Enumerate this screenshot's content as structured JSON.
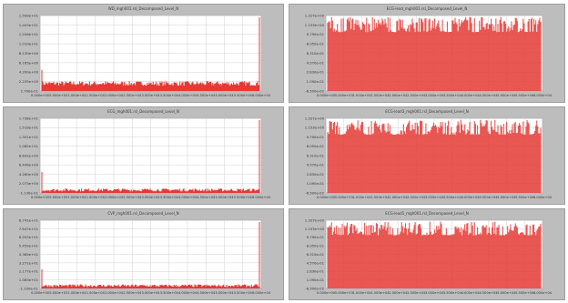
{
  "chart_data": [
    {
      "type": "bar",
      "title": "WD_mgh001.rsl_Decomposed_Level_N",
      "yticks": [
        "1.599e+01",
        "1.403e+01",
        "1.206e+01",
        "1.010e+01",
        "8.130e+00",
        "6.165e+00",
        "4.200e+00",
        "2.235e+00",
        "2.700e-01"
      ],
      "xticks": [
        "0.000e+00",
        "5.000e+03",
        "1.000e+04",
        "1.500e+04",
        "2.000e+04",
        "2.500e+04",
        "3.000e+04",
        "3.500e+04",
        "4.000e+04",
        "4.500e+04",
        "5.000e+04",
        "5.500e+04",
        "6.000e+04"
      ],
      "pattern": "flat",
      "series_color": "#e53935"
    },
    {
      "type": "bar",
      "title": "ECG-lead_mgh001.rsl_Decomposed_Level_N",
      "yticks": [
        "1.327e+00",
        "1.153e+00",
        "9.790e-01",
        "8.050e-01",
        "6.310e-01",
        "4.570e-01",
        "2.830e-01",
        "1.090e-01",
        "-6.500e-02"
      ],
      "xticks": [
        "0.000e+00",
        "5.000e+03",
        "1.000e+04",
        "1.500e+04",
        "2.000e+04",
        "2.500e+04",
        "3.000e+04",
        "3.500e+04",
        "4.000e+04",
        "4.500e+04",
        "5.000e+04",
        "5.500e+04",
        "6.000e+04"
      ],
      "pattern": "dense",
      "series_color": "#e53935"
    },
    {
      "type": "bar",
      "title": "ECG_mgh001.rsl_Decomposed_Level_N",
      "yticks": [
        "1.738e+01",
        "1.519e+01",
        "1.301e+01",
        "1.082e+01",
        "8.632e+00",
        "6.446e+00",
        "4.260e+00",
        "2.073e+00",
        "-1.130e-01"
      ],
      "xticks": [
        "0.000e+00",
        "5.000e+03",
        "1.000e+04",
        "1.500e+04",
        "2.000e+04",
        "2.500e+04",
        "3.000e+04",
        "3.500e+04",
        "4.000e+04",
        "4.500e+04",
        "5.000e+04",
        "5.500e+04",
        "6.000e+04"
      ],
      "pattern": "thin",
      "series_color": "#e53935"
    },
    {
      "type": "bar",
      "title": "ECG-lead3_mgh001.rsl_Decomposed_Level_N",
      "yticks": [
        "1.327e+00",
        "1.153e+00",
        "9.790e-01",
        "8.050e-01",
        "6.310e-01",
        "4.570e-01",
        "2.830e-01",
        "1.090e-01",
        "-6.500e-02"
      ],
      "xticks": [
        "0.000e+00",
        "5.000e+03",
        "1.000e+04",
        "1.500e+04",
        "2.000e+04",
        "2.500e+04",
        "3.000e+04",
        "3.500e+04",
        "4.000e+04",
        "4.500e+04",
        "5.000e+04",
        "5.500e+04",
        "6.000e+04"
      ],
      "pattern": "dense",
      "series_color": "#e53935"
    },
    {
      "type": "bar",
      "title": "CVP_mgh001.rsl_Decomposed_Level_N",
      "yticks": [
        "8.741e+01",
        "7.647e+01",
        "6.553e+01",
        "5.459e+01",
        "4.365e+01",
        "3.271e+01",
        "2.177e+01",
        "1.083e+01",
        "-1.100e-01"
      ],
      "xticks": [
        "0.000e+00",
        "5.000e+03",
        "1.000e+04",
        "1.500e+04",
        "2.000e+04",
        "2.500e+04",
        "3.000e+04",
        "3.500e+04",
        "4.000e+04",
        "4.500e+04",
        "5.000e+04",
        "5.500e+04",
        "6.000e+04"
      ],
      "pattern": "thin",
      "series_color": "#e53935"
    },
    {
      "type": "bar",
      "title": "ECG-lead1_mgh001.rsl_Decomposed_Level_N",
      "yticks": [
        "1.327e+00",
        "1.153e+00",
        "9.790e-01",
        "8.050e-01",
        "6.310e-01",
        "4.570e-01",
        "2.830e-01",
        "1.090e-01",
        "-6.500e-02"
      ],
      "xticks": [
        "0.000e+00",
        "5.000e+03",
        "1.000e+04",
        "1.500e+04",
        "2.000e+04",
        "2.500e+04",
        "3.000e+04",
        "3.500e+04",
        "4.000e+04",
        "4.500e+04",
        "5.000e+04",
        "5.500e+04",
        "6.000e+04"
      ],
      "pattern": "dense",
      "series_color": "#e53935"
    }
  ]
}
